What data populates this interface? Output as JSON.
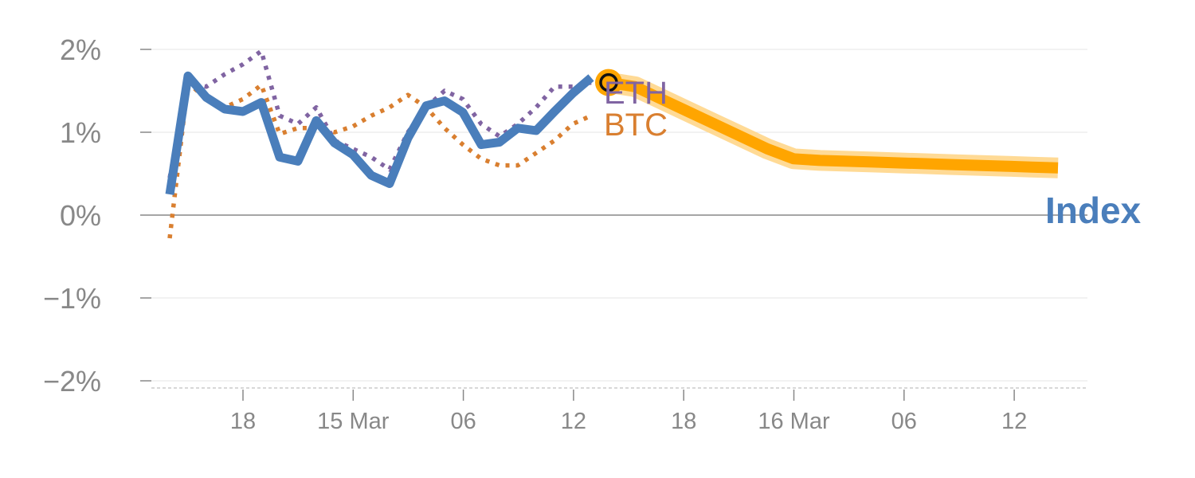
{
  "chart_data": {
    "type": "line",
    "title": "",
    "xlabel": "",
    "ylabel": "",
    "ylim": [
      -2,
      2
    ],
    "grid": true,
    "y_ticks": [
      "2%",
      "1%",
      "0%",
      "−1%",
      "−2%"
    ],
    "x_tick_labels": [
      "18",
      "15 Mar",
      "06",
      "12",
      "18",
      "16 Mar",
      "06",
      "12"
    ],
    "series": [
      {
        "name": "Index",
        "color": "#4a7ebb",
        "style": "solid",
        "values": [
          0.25,
          1.68,
          1.42,
          1.28,
          1.25,
          1.36,
          0.7,
          0.65,
          1.14,
          0.87,
          0.73,
          0.48,
          0.38,
          0.93,
          1.32,
          1.38,
          1.24,
          0.85,
          0.88,
          1.05,
          1.02,
          1.25,
          1.47,
          1.66
        ]
      },
      {
        "name": "ETH",
        "color": "#8064a2",
        "style": "dotted",
        "values": [
          0.45,
          1.6,
          1.55,
          1.7,
          1.82,
          1.98,
          1.2,
          1.1,
          1.3,
          0.9,
          0.8,
          0.7,
          0.55,
          1.0,
          1.3,
          1.5,
          1.4,
          1.1,
          0.95,
          1.1,
          1.3,
          1.55,
          1.55,
          1.6
        ]
      },
      {
        "name": "BTC",
        "color": "#d97f30",
        "style": "dotted",
        "values": [
          -0.28,
          1.6,
          1.4,
          1.3,
          1.4,
          1.57,
          0.98,
          1.05,
          1.05,
          1.0,
          1.07,
          1.2,
          1.3,
          1.45,
          1.3,
          1.05,
          0.85,
          0.68,
          0.6,
          0.6,
          0.75,
          0.9,
          1.1,
          1.2
        ]
      }
    ],
    "projection": {
      "color": "#ffa500",
      "values": [
        1.6,
        1.55,
        1.4,
        1.25,
        1.1,
        0.95,
        0.8,
        0.68,
        0.66,
        0.65,
        0.64,
        0.63,
        0.62,
        0.61,
        0.6,
        0.59,
        0.58,
        0.57
      ],
      "marker_value": 1.6
    },
    "labels": {
      "eth": "ETH",
      "btc": "BTC",
      "index": "Index"
    }
  }
}
